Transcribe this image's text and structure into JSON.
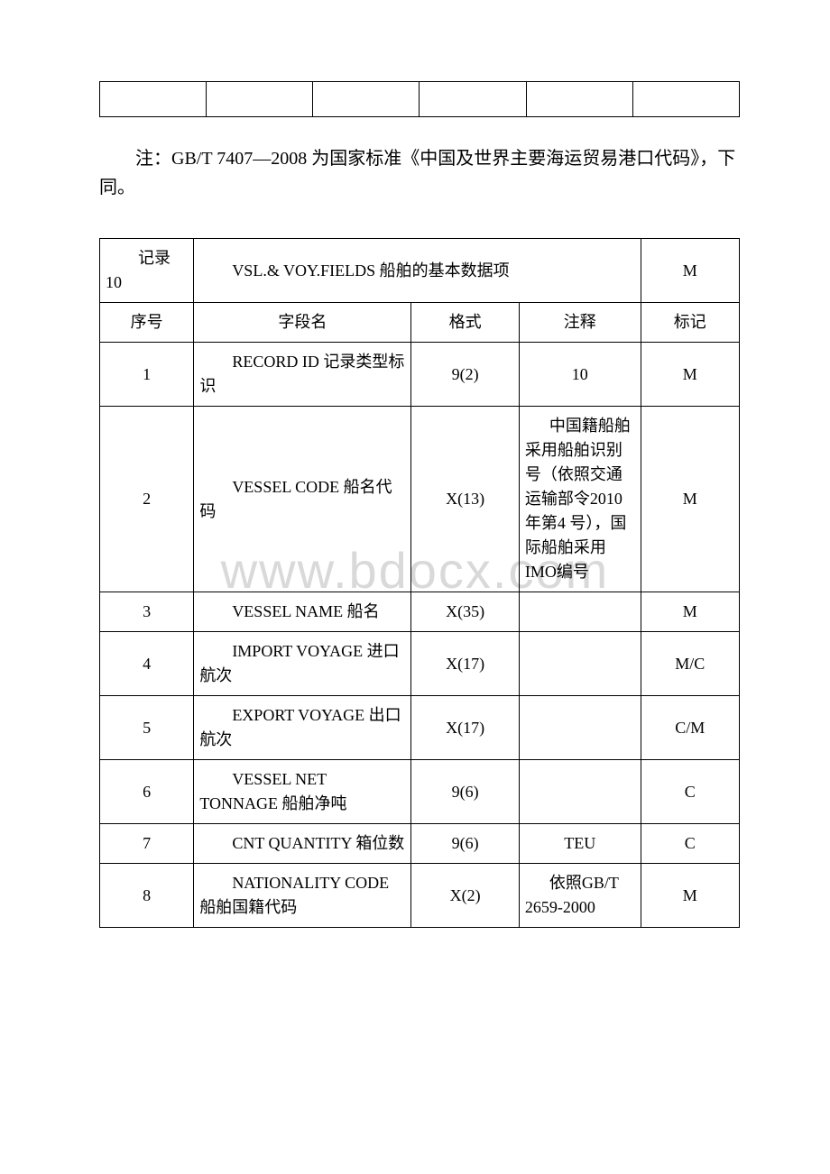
{
  "watermark_text": "www.bdocx.com",
  "empty_table_rows": 1,
  "empty_table_cols": 6,
  "note": "注：GB/T 7407—2008 为国家标准《中国及世界主要海运贸易港口代码》，下同。",
  "table": {
    "header": {
      "rec_label": "记录 10",
      "title": "VSL.& VOY.FIELDS 船舶的基本数据项",
      "mark": "M",
      "cols": [
        "序号",
        "字段名",
        "格式",
        "注释",
        "标记"
      ]
    },
    "rows": [
      {
        "seq": "1",
        "field_en": "RECORD ID",
        "field_zh": "记录类型标识",
        "fmt": "9(2)",
        "note": "10",
        "mark": "M"
      },
      {
        "seq": "2",
        "field_en": "VESSEL CODE",
        "field_zh": "船名代码",
        "fmt": "X(13)",
        "note": "中国籍船舶采用船舶识别号（依照交通运输部令2010 年第4 号），国际船舶采用 IMO编号",
        "mark": "M"
      },
      {
        "seq": "3",
        "field_en": "VESSEL NAME",
        "field_zh": "船名",
        "fmt": "X(35)",
        "note": "",
        "mark": "M"
      },
      {
        "seq": "4",
        "field_en": "IMPORT VOYAGE",
        "field_zh": "进口航次",
        "fmt": "X(17)",
        "note": "",
        "mark": "M/C"
      },
      {
        "seq": "5",
        "field_en": "EXPORT VOYAGE",
        "field_zh": "出口航次",
        "fmt": "X(17)",
        "note": "",
        "mark": "C/M"
      },
      {
        "seq": "6",
        "field_en": "VESSEL NET TONNAGE",
        "field_zh": "船舶净吨",
        "fmt": "9(6)",
        "note": "",
        "mark": "C"
      },
      {
        "seq": "7",
        "field_en": "CNT QUANTITY",
        "field_zh": "箱位数",
        "fmt": "9(6)",
        "note": "TEU",
        "mark": "C"
      },
      {
        "seq": "8",
        "field_en": "NATIONALITY CODE",
        "field_zh": "船舶国籍代码",
        "fmt": "X(2)",
        "note": "依照GB/T 2659-2000",
        "mark": "M"
      }
    ]
  },
  "colors": {
    "text": "#000000",
    "border": "#000000",
    "background": "#ffffff",
    "watermark": "#d9d9d9"
  },
  "fonts": {
    "body_size_pt": 15,
    "watermark_size_pt": 42
  }
}
